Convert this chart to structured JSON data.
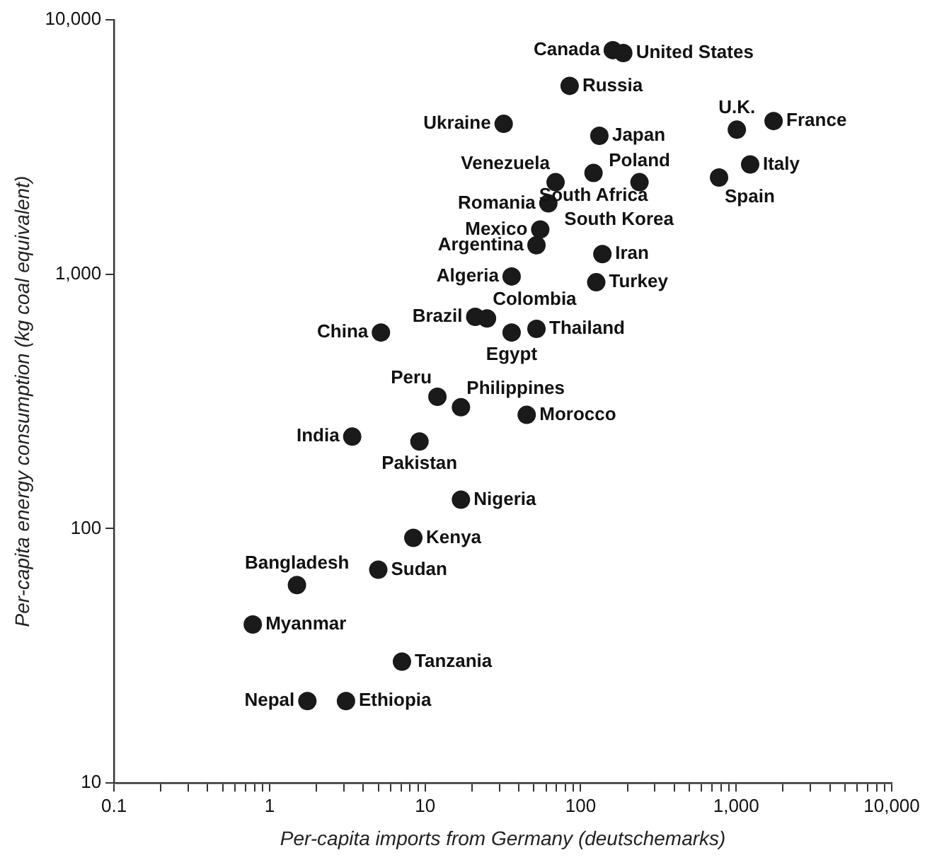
{
  "chart_data": {
    "type": "scatter",
    "xlabel": "Per-capita imports from Germany (deutschemarks)",
    "ylabel": "Per-capita energy consumption (kg coal equivalent)",
    "log": "xy",
    "grid": false,
    "legend": false,
    "marker": "circle",
    "xlim": [
      0.1,
      10000
    ],
    "ylim": [
      10,
      10000
    ],
    "xticks": [
      0.1,
      {
        "value": 0.2,
        "label": null
      },
      {
        "value": 0.3,
        "label": null
      },
      {
        "value": 0.4,
        "label": null
      },
      {
        "value": 0.5,
        "label": null
      },
      {
        "value": 0.6,
        "label": null
      },
      {
        "value": 0.7,
        "label": null
      },
      {
        "value": 0.8,
        "label": null
      },
      {
        "value": 0.9,
        "label": null
      },
      1,
      {
        "value": 2,
        "label": null
      },
      {
        "value": 3,
        "label": null
      },
      {
        "value": 4,
        "label": null
      },
      {
        "value": 5,
        "label": null
      },
      {
        "value": 6,
        "label": null
      },
      {
        "value": 7,
        "label": null
      },
      {
        "value": 8,
        "label": null
      },
      {
        "value": 9,
        "label": null
      },
      10,
      {
        "value": 20,
        "label": null
      },
      {
        "value": 30,
        "label": null
      },
      {
        "value": 40,
        "label": null
      },
      {
        "value": 50,
        "label": null
      },
      {
        "value": 60,
        "label": null
      },
      {
        "value": 70,
        "label": null
      },
      {
        "value": 80,
        "label": null
      },
      {
        "value": 90,
        "label": null
      },
      100,
      {
        "value": 200,
        "label": null
      },
      {
        "value": 300,
        "label": null
      },
      {
        "value": 400,
        "label": null
      },
      {
        "value": 500,
        "label": null
      },
      {
        "value": 600,
        "label": null
      },
      {
        "value": 700,
        "label": null
      },
      {
        "value": 800,
        "label": null
      },
      {
        "value": 900,
        "label": null
      },
      {
        "value": 1000,
        "label": "1,000"
      },
      {
        "value": 2000,
        "label": null
      },
      {
        "value": 3000,
        "label": null
      },
      {
        "value": 4000,
        "label": null
      },
      {
        "value": 5000,
        "label": null
      },
      {
        "value": 6000,
        "label": null
      },
      {
        "value": 7000,
        "label": null
      },
      {
        "value": 8000,
        "label": null
      },
      {
        "value": 9000,
        "label": null
      },
      {
        "value": 10000,
        "label": "10,000"
      }
    ],
    "yticks": [
      10,
      100,
      {
        "value": 1000,
        "label": "1,000"
      },
      {
        "value": 10000,
        "label": "10,000"
      }
    ],
    "annotations": [
      "South Korea"
    ],
    "series": [
      {
        "color": "#1a1a1a",
        "x": [
          161,
          188,
          85,
          32,
          132,
          1010,
          1740,
          1230,
          776,
          239,
          121,
          69,
          62,
          55,
          52,
          138,
          36,
          126,
          21,
          25,
          5.2,
          52,
          36,
          12,
          17,
          45,
          3.4,
          9.2,
          17,
          8.4,
          5.0,
          1.5,
          0.78,
          7.1,
          1.75,
          3.1
        ],
        "values": [
          7600,
          7400,
          5500,
          3900,
          3500,
          3700,
          4000,
          2700,
          2400,
          2300,
          2500,
          2300,
          1900,
          1500,
          1300,
          1200,
          980,
          930,
          680,
          670,
          590,
          610,
          590,
          330,
          300,
          280,
          230,
          220,
          130,
          92,
          69,
          60,
          42,
          30,
          21,
          21
        ],
        "value_labels": [
          "Canada",
          "United States",
          "Russia",
          "Ukraine",
          "Japan",
          "U.K.",
          "France",
          "Italy",
          "Spain",
          "Poland",
          "South Africa",
          "Venezuela",
          "Romania",
          "Mexico",
          "Argentina",
          "Iran",
          "Algeria",
          "Turkey",
          "Brazil",
          "Colombia",
          "China",
          "Thailand",
          "Egypt",
          "Peru",
          "Philippines",
          "Morocco",
          "India",
          "Pakistan",
          "Nigeria",
          "Kenya",
          "Sudan",
          "Bangladesh",
          "Myanmar",
          "Tanzania",
          "Nepal",
          "Ethiopia"
        ]
      }
    ]
  }
}
